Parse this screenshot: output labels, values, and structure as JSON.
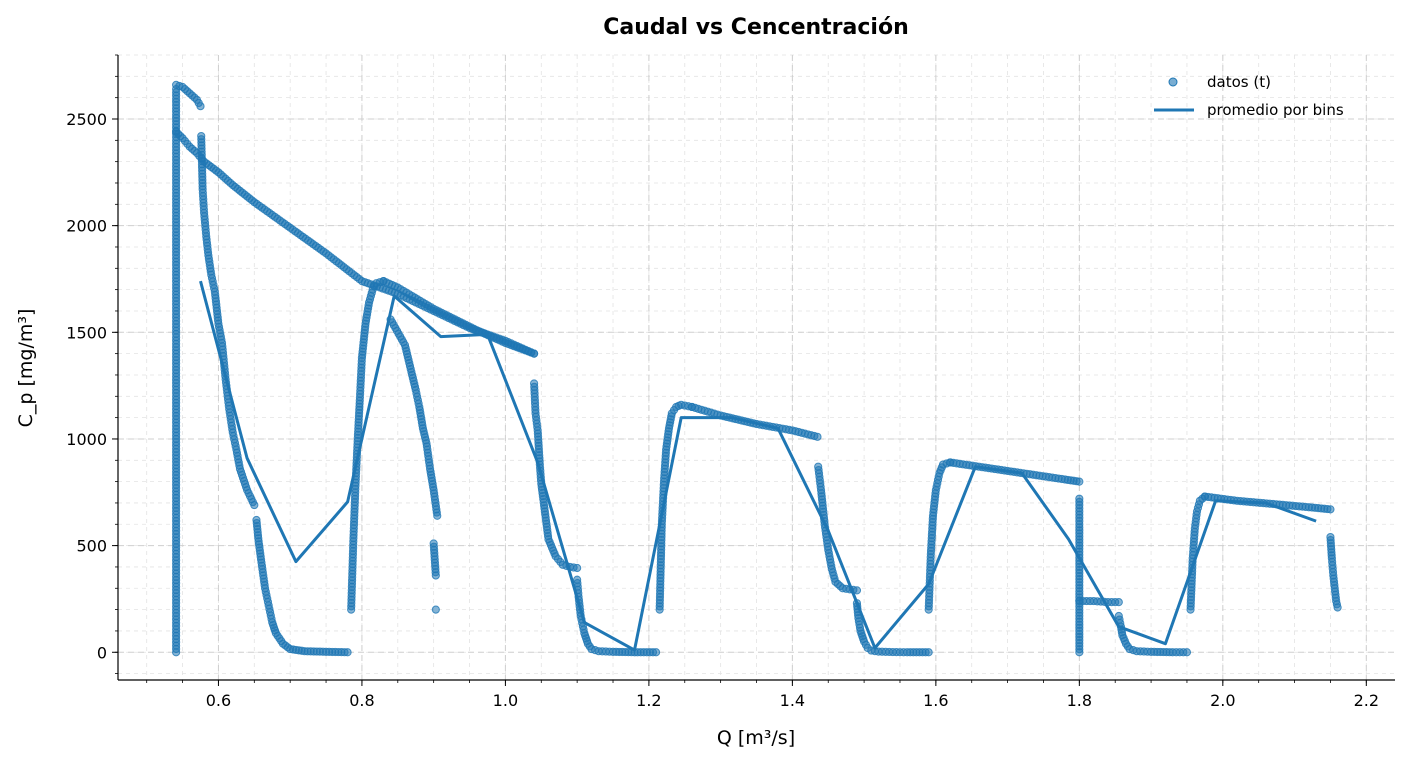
{
  "chart_data": {
    "type": "scatter",
    "title": "Caudal vs Cencentración",
    "xlabel": "Q [m³/s]",
    "ylabel": "C_p [mg/m³]",
    "xlim": [
      0.46,
      2.24
    ],
    "ylim": [
      -130,
      2800
    ],
    "x_ticks": [
      0.6,
      0.8,
      1.0,
      1.2,
      1.4,
      1.6,
      1.8,
      2.0,
      2.2
    ],
    "x_tick_labels": [
      "0.6",
      "0.8",
      "1.0",
      "1.2",
      "1.4",
      "1.6",
      "1.8",
      "2.0",
      "2.2"
    ],
    "y_ticks": [
      0,
      500,
      1000,
      1500,
      2000,
      2500
    ],
    "y_tick_labels": [
      "0",
      "500",
      "1000",
      "1500",
      "2000",
      "2500"
    ],
    "grid": true,
    "legend_position": "top-right",
    "colors": {
      "series": "#1f77b4"
    },
    "series": [
      {
        "name": "datos (t)",
        "kind": "scatter",
        "segments": [
          {
            "x": [
              0.541,
              0.541,
              0.541,
              0.541,
              0.541,
              0.541,
              0.541,
              0.541,
              0.541,
              0.541,
              0.541,
              0.541,
              0.541,
              0.541
            ],
            "y": [
              0,
              200,
              400,
              600,
              800,
              1000,
              1200,
              1400,
              1600,
              1800,
              2000,
              2200,
              2400,
              2640
            ]
          },
          {
            "x": [
              0.541,
              0.55,
              0.56,
              0.57,
              0.575
            ],
            "y": [
              2660,
              2650,
              2620,
              2590,
              2560
            ]
          },
          {
            "x": [
              0.541,
              0.55,
              0.56,
              0.57,
              0.58,
              0.6,
              0.62,
              0.65,
              0.7,
              0.75,
              0.8,
              0.85,
              0.9,
              0.95,
              1.0,
              1.04
            ],
            "y": [
              2440,
              2410,
              2370,
              2340,
              2300,
              2250,
              2190,
              2110,
              1990,
              1870,
              1740,
              1680,
              1600,
              1520,
              1460,
              1400
            ]
          },
          {
            "x": [
              0.576,
              0.578,
              0.58,
              0.583,
              0.586,
              0.59,
              0.595,
              0.6,
              0.605,
              0.61,
              0.615,
              0.62,
              0.625,
              0.63,
              0.64,
              0.65
            ],
            "y": [
              2420,
              2170,
              2060,
              1950,
              1860,
              1770,
              1690,
              1540,
              1450,
              1280,
              1140,
              1030,
              950,
              860,
              760,
              690
            ]
          },
          {
            "x": [
              0.653,
              0.656,
              0.66,
              0.665,
              0.67,
              0.675,
              0.68,
              0.69,
              0.7,
              0.72,
              0.75,
              0.78
            ],
            "y": [
              620,
              520,
              420,
              300,
              220,
              140,
              90,
              40,
              15,
              5,
              2,
              0
            ]
          },
          {
            "x": [
              0.785,
              0.788,
              0.791,
              0.794,
              0.797,
              0.8,
              0.805,
              0.81,
              0.815,
              0.82,
              0.83
            ],
            "y": [
              200,
              520,
              780,
              990,
              1180,
              1380,
              1540,
              1640,
              1700,
              1730,
              1740
            ]
          },
          {
            "x": [
              0.83,
              0.85,
              0.87,
              0.9,
              0.93,
              0.96,
              1.0,
              1.04
            ],
            "y": [
              1740,
              1710,
              1670,
              1610,
              1560,
              1510,
              1450,
              1400
            ]
          },
          {
            "x": [
              0.84,
              0.86,
              0.87,
              0.875,
              0.88,
              0.885,
              0.89,
              0.895,
              0.9,
              0.905
            ],
            "y": [
              1560,
              1440,
              1300,
              1230,
              1150,
              1050,
              980,
              860,
              760,
              640
            ]
          },
          {
            "x": [
              0.9,
              0.903
            ],
            "y": [
              510,
              360
            ]
          },
          {
            "x": [
              0.903
            ],
            "y": [
              200
            ]
          },
          {
            "x": [
              1.04,
              1.042,
              1.045,
              1.048,
              1.05,
              1.055,
              1.06,
              1.07,
              1.08,
              1.09,
              1.1
            ],
            "y": [
              1260,
              1120,
              1040,
              880,
              790,
              660,
              530,
              450,
              410,
              400,
              395
            ]
          },
          {
            "x": [
              1.1,
              1.102,
              1.105,
              1.11,
              1.115,
              1.12,
              1.13,
              1.15,
              1.18,
              1.21
            ],
            "y": [
              340,
              260,
              170,
              90,
              40,
              15,
              5,
              2,
              0,
              0
            ]
          },
          {
            "x": [
              1.215,
              1.218,
              1.221,
              1.224,
              1.228,
              1.232,
              1.238,
              1.245,
              1.26
            ],
            "y": [
              200,
              600,
              800,
              950,
              1050,
              1120,
              1150,
              1160,
              1150
            ]
          },
          {
            "x": [
              1.26,
              1.3,
              1.35,
              1.4,
              1.435
            ],
            "y": [
              1150,
              1110,
              1070,
              1040,
              1010
            ]
          },
          {
            "x": [
              1.436,
              1.44,
              1.445,
              1.45,
              1.455,
              1.46,
              1.47,
              1.48,
              1.49
            ],
            "y": [
              870,
              760,
              600,
              480,
              390,
              330,
              300,
              295,
              290
            ]
          },
          {
            "x": [
              1.49,
              1.492,
              1.495,
              1.5,
              1.505,
              1.51,
              1.52,
              1.54,
              1.56,
              1.59
            ],
            "y": [
              230,
              160,
              100,
              50,
              20,
              8,
              3,
              1,
              0,
              0
            ]
          },
          {
            "x": [
              1.59,
              1.593,
              1.596,
              1.6,
              1.605,
              1.61,
              1.62
            ],
            "y": [
              200,
              460,
              640,
              760,
              840,
              880,
              890
            ]
          },
          {
            "x": [
              1.62,
              1.66,
              1.7,
              1.74,
              1.78,
              1.8
            ],
            "y": [
              890,
              870,
              850,
              830,
              810,
              800
            ]
          },
          {
            "x": [
              1.8,
              1.8,
              1.8,
              1.8,
              1.8,
              1.8,
              1.8,
              1.8
            ],
            "y": [
              0,
              100,
              200,
              300,
              400,
              500,
              600,
              720
            ]
          },
          {
            "x": [
              1.8,
              1.82,
              1.84,
              1.855
            ],
            "y": [
              240,
              240,
              235,
              235
            ]
          },
          {
            "x": [
              1.855,
              1.858,
              1.86,
              1.865,
              1.87,
              1.88,
              1.9,
              1.93,
              1.95
            ],
            "y": [
              170,
              120,
              80,
              40,
              15,
              5,
              2,
              0,
              0
            ]
          },
          {
            "x": [
              1.955,
              1.958,
              1.961,
              1.964,
              1.968,
              1.975
            ],
            "y": [
              200,
              440,
              580,
              660,
              710,
              730
            ]
          },
          {
            "x": [
              1.975,
              2.02,
              2.07,
              2.12,
              2.15
            ],
            "y": [
              730,
              710,
              695,
              680,
              670
            ]
          },
          {
            "x": [
              2.15,
              2.152,
              2.154,
              2.156,
              2.158,
              2.16
            ],
            "y": [
              540,
              440,
              360,
              300,
              240,
              210
            ]
          }
        ]
      },
      {
        "name": "promedio por bins",
        "kind": "line",
        "x": [
          0.575,
          0.64,
          0.708,
          0.78,
          0.845,
          0.91,
          0.975,
          1.045,
          1.11,
          1.18,
          1.245,
          1.315,
          1.38,
          1.45,
          1.515,
          1.59,
          1.655,
          1.72,
          1.785,
          1.855,
          1.92,
          1.99,
          2.06,
          2.13
        ],
        "y": [
          1740,
          910,
          425,
          705,
          1670,
          1480,
          1490,
          890,
          140,
          10,
          1100,
          1100,
          1050,
          570,
          20,
          320,
          870,
          840,
          530,
          120,
          40,
          710,
          700,
          615
        ]
      }
    ]
  }
}
